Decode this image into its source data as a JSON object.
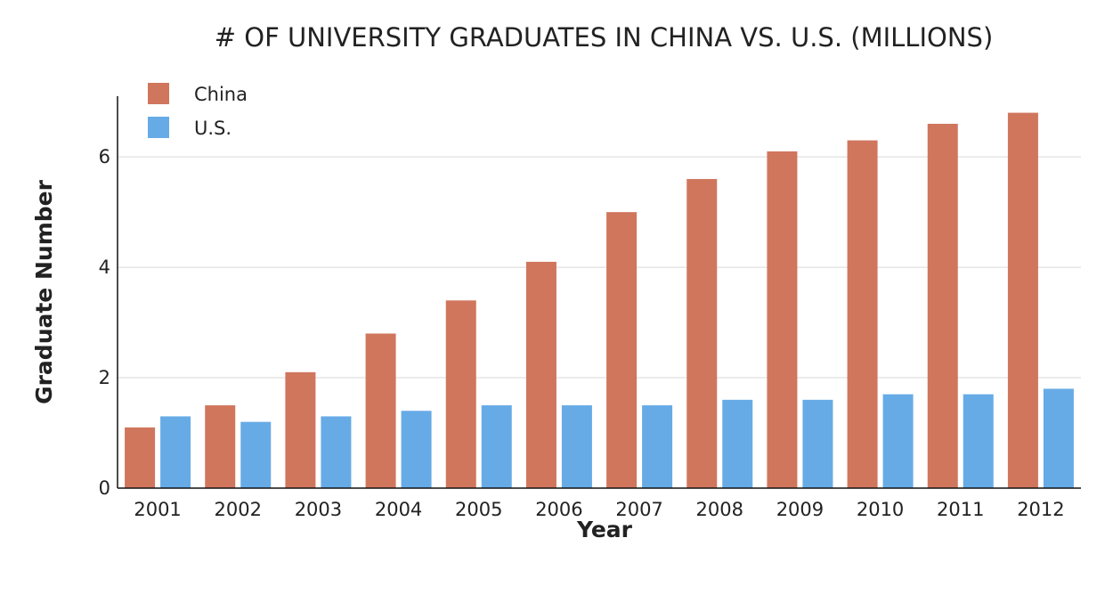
{
  "chart_data": {
    "type": "bar",
    "title": "# OF UNIVERSITY GRADUATES IN CHINA VS. U.S. (MILLIONS)",
    "xlabel": "Year",
    "ylabel": "Graduate Number",
    "categories": [
      "2001",
      "2002",
      "2003",
      "2004",
      "2005",
      "2006",
      "2007",
      "2008",
      "2009",
      "2010",
      "2011",
      "2012"
    ],
    "series": [
      {
        "name": "China",
        "color": "#d0765d",
        "values": [
          1.1,
          1.5,
          2.1,
          2.8,
          3.4,
          4.1,
          5.0,
          5.6,
          6.1,
          6.3,
          6.6,
          6.8
        ]
      },
      {
        "name": "U.S.",
        "color": "#66abe6",
        "values": [
          1.3,
          1.2,
          1.3,
          1.4,
          1.5,
          1.5,
          1.5,
          1.6,
          1.6,
          1.7,
          1.7,
          1.8
        ]
      }
    ],
    "ylim": [
      0,
      7.1
    ],
    "yticks": [
      0,
      2,
      4,
      6
    ],
    "grid": true,
    "legend_position": "top-left"
  }
}
